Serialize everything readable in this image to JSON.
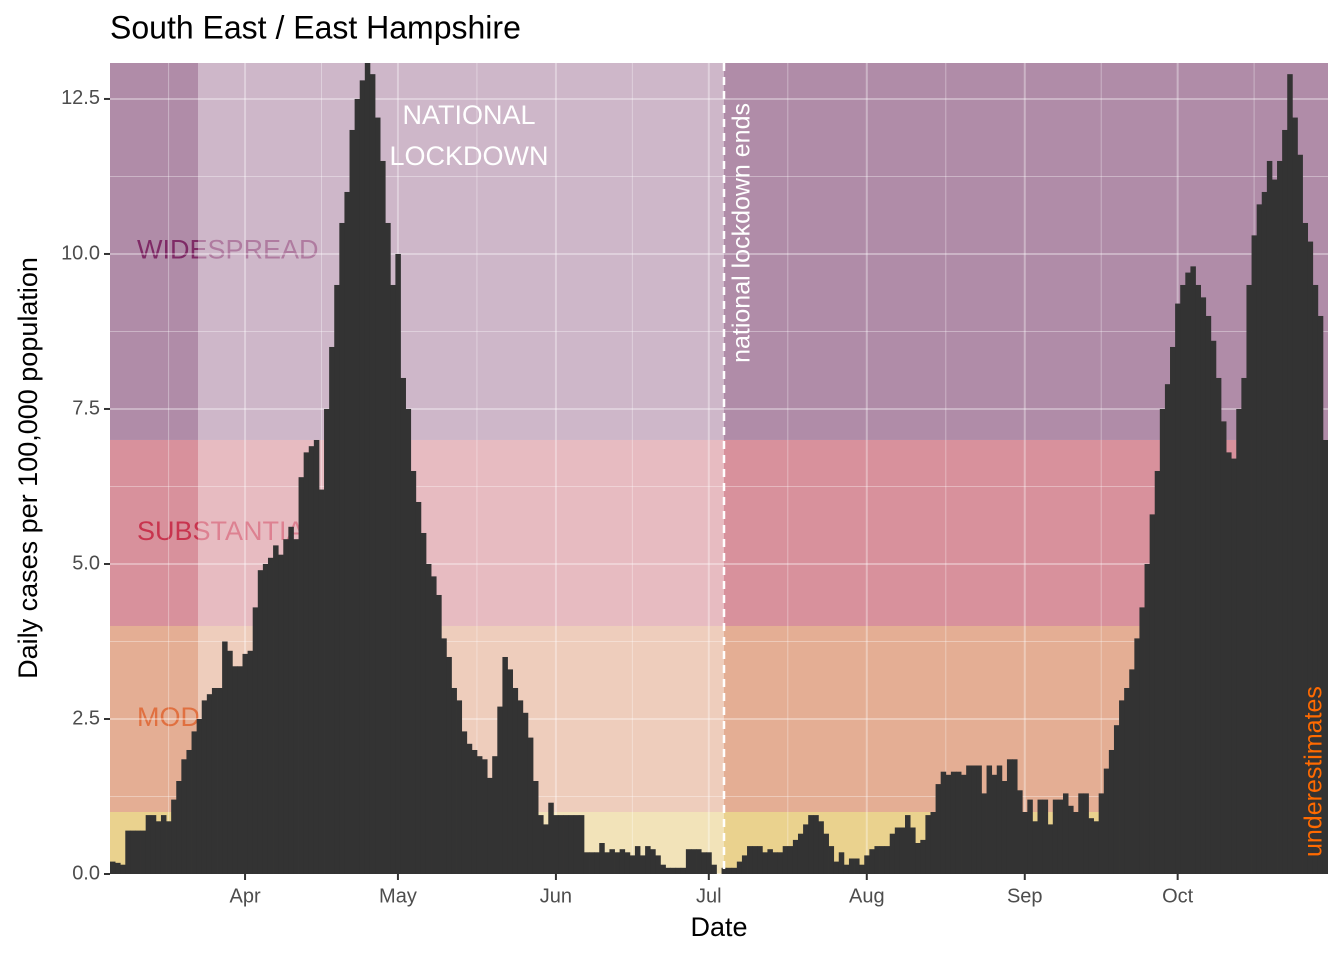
{
  "chart_data": {
    "type": "bar",
    "title": "South East / East Hampshire",
    "x_label": "Date",
    "y_label": "Daily cases per 100,000 population",
    "color": "#333333",
    "categories": [
      null,
      null,
      null,
      null,
      null,
      null,
      null,
      null,
      null,
      null,
      null,
      null,
      null,
      null,
      null,
      null,
      null,
      null,
      null,
      null,
      null,
      null,
      null,
      null,
      null,
      null,
      "Apr",
      null,
      null,
      null,
      null,
      null,
      null,
      null,
      null,
      null,
      null,
      null,
      null,
      null,
      null,
      null,
      null,
      null,
      null,
      null,
      null,
      null,
      null,
      null,
      null,
      null,
      null,
      null,
      null,
      null,
      "May",
      null,
      null,
      null,
      null,
      null,
      null,
      null,
      null,
      null,
      null,
      null,
      null,
      null,
      null,
      null,
      null,
      null,
      null,
      null,
      null,
      null,
      null,
      null,
      null,
      null,
      null,
      null,
      null,
      null,
      null,
      "Jun",
      null,
      null,
      null,
      null,
      null,
      null,
      null,
      null,
      null,
      null,
      null,
      null,
      null,
      null,
      null,
      null,
      null,
      null,
      null,
      null,
      null,
      null,
      null,
      null,
      null,
      null,
      null,
      null,
      null,
      "Jul",
      null,
      null,
      null,
      null,
      null,
      null,
      null,
      null,
      null,
      null,
      null,
      null,
      null,
      null,
      null,
      null,
      null,
      null,
      null,
      null,
      null,
      null,
      null,
      null,
      null,
      null,
      null,
      null,
      null,
      null,
      "Aug",
      null,
      null,
      null,
      null,
      null,
      null,
      null,
      null,
      null,
      null,
      null,
      null,
      null,
      null,
      null,
      null,
      null,
      null,
      null,
      null,
      null,
      null,
      null,
      null,
      null,
      null,
      null,
      null,
      null,
      null,
      "Sep",
      null,
      null,
      null,
      null,
      null,
      null,
      null,
      null,
      null,
      null,
      null,
      null,
      null,
      null,
      null,
      null,
      null,
      null,
      null,
      null,
      null,
      null,
      null,
      null,
      null,
      null,
      null,
      null,
      null,
      "Oct",
      null,
      null,
      null,
      null,
      null,
      null,
      null,
      null,
      null,
      null,
      null,
      null,
      null,
      null,
      null,
      null,
      null,
      null,
      null,
      null,
      null,
      null,
      null,
      null,
      null,
      null,
      null,
      null,
      null
    ],
    "values": [
      0.2,
      0.18,
      0.15,
      0.7,
      0.7,
      0.7,
      0.7,
      0.95,
      0.95,
      0.85,
      0.95,
      0.85,
      1.2,
      1.5,
      1.85,
      2.0,
      2.3,
      2.5,
      2.8,
      2.9,
      3.0,
      3.0,
      3.75,
      3.6,
      3.35,
      3.35,
      3.55,
      3.6,
      4.3,
      4.9,
      5.0,
      5.1,
      5.3,
      5.15,
      5.4,
      5.6,
      5.4,
      6.4,
      6.8,
      6.9,
      7.0,
      6.2,
      7.5,
      8.5,
      9.5,
      10.5,
      11.0,
      12.0,
      12.5,
      12.8,
      13.08,
      12.9,
      12.2,
      11.5,
      10.5,
      9.5,
      10.0,
      8.0,
      7.5,
      6.5,
      6.0,
      5.5,
      5.0,
      4.8,
      4.5,
      3.8,
      3.5,
      3.0,
      2.8,
      2.3,
      2.1,
      2.0,
      1.9,
      1.85,
      1.55,
      1.9,
      2.7,
      3.5,
      3.3,
      3.0,
      2.8,
      2.6,
      2.2,
      1.5,
      0.95,
      0.8,
      1.15,
      0.95,
      0.95,
      0.95,
      0.95,
      0.95,
      0.95,
      0.35,
      0.35,
      0.35,
      0.5,
      0.35,
      0.4,
      0.35,
      0.4,
      0.35,
      0.3,
      0.45,
      0.3,
      0.45,
      0.4,
      0.3,
      0.15,
      0.1,
      0.1,
      0.1,
      0.1,
      0.4,
      0.4,
      0.4,
      0.35,
      0.35,
      0.15,
      0.0,
      0.1,
      0.1,
      0.1,
      0.2,
      0.3,
      0.45,
      0.45,
      0.45,
      0.35,
      0.4,
      0.35,
      0.35,
      0.45,
      0.45,
      0.55,
      0.65,
      0.8,
      0.95,
      0.95,
      0.85,
      0.65,
      0.45,
      0.2,
      0.35,
      0.15,
      0.25,
      0.25,
      0.15,
      0.3,
      0.4,
      0.45,
      0.45,
      0.45,
      0.65,
      0.75,
      0.75,
      0.95,
      0.75,
      0.5,
      0.55,
      0.95,
      1.0,
      1.45,
      1.65,
      1.6,
      1.65,
      1.65,
      1.6,
      1.75,
      1.75,
      1.75,
      1.3,
      1.75,
      1.6,
      1.75,
      1.5,
      1.85,
      1.85,
      1.35,
      1.0,
      1.2,
      0.85,
      1.2,
      1.2,
      0.8,
      1.2,
      1.2,
      1.3,
      1.1,
      1.0,
      1.3,
      1.3,
      0.9,
      0.85,
      1.3,
      1.7,
      2.0,
      2.4,
      2.8,
      3.0,
      3.3,
      3.8,
      4.3,
      5.0,
      5.8,
      6.5,
      7.5,
      7.9,
      8.5,
      9.2,
      9.5,
      9.7,
      9.8,
      9.5,
      9.3,
      9.0,
      8.6,
      8.0,
      7.3,
      6.8,
      6.7,
      7.5,
      8.0,
      9.5,
      10.3,
      10.8,
      11.0,
      11.5,
      11.2,
      11.5,
      12.0,
      12.9,
      12.2,
      11.6,
      10.5,
      10.2,
      9.5,
      9.0,
      7.0
    ],
    "ylim": [
      0,
      13.08
    ],
    "yticks": [
      {
        "value": 0,
        "label": "0.0"
      },
      2.5,
      {
        "value": 5,
        "label": "5.0"
      },
      7.5,
      {
        "value": 10,
        "label": "10.0"
      },
      12.5
    ],
    "grid": true,
    "bands": [
      {
        "from": 0,
        "to": 1,
        "color": "#ead28e"
      },
      {
        "name": "MODERATE",
        "from": 1,
        "to": 4,
        "color": "#e4ae94",
        "label_color": "#e07040"
      },
      {
        "name": "SUBSTANTIAL",
        "from": 4,
        "to": 7,
        "color": "#d8919c",
        "label_color": "#c8344e"
      },
      {
        "name": "WIDESPREAD",
        "from": 7,
        "color": "#b08ca8",
        "label_color": "#7f2a66"
      }
    ],
    "annotations": {
      "lockdown": [
        "NATIONAL",
        "LOCKDOWN"
      ],
      "lockdown_end": "national lockdown ends",
      "underestimates": "underestimates"
    }
  }
}
